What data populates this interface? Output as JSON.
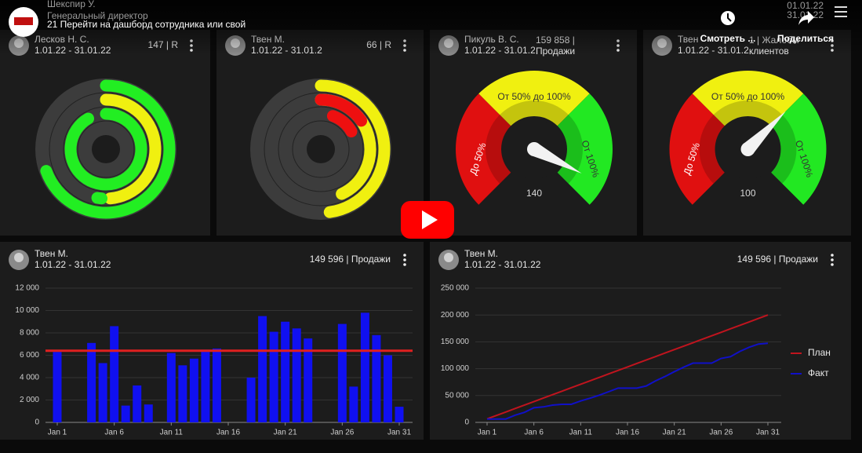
{
  "video": {
    "channel_name": "Шекспир У.",
    "channel_role": "Генеральный директор",
    "title": "21 Перейти на дашборд сотрудника или свой",
    "date_from": "01.01.22",
    "date_to": "31.01.22",
    "watch_later": "Смотреть ...",
    "share": "Поделиться"
  },
  "cards": [
    {
      "name": "Лесков Н. С.",
      "period": "1.01.22 - 31.01.22",
      "metric": "147 | R"
    },
    {
      "name": "Твен М.",
      "period": "1.01.22 - 31.01.2",
      "metric": "66 | R"
    },
    {
      "name": "Пикуль В. С.",
      "period": "1.01.22 - 31.01.2",
      "metric": "159 858 |",
      "metric_unit": "Продажи",
      "gauge": {
        "value": 140,
        "range": [
          0,
          150
        ],
        "low_label": "До 50%",
        "mid_label": "От 50% до 100%",
        "high_label": "От 100%"
      }
    },
    {
      "name": "Твен",
      "period": "1.01.22 - 31.01.2",
      "metric": "1 | Жалобы",
      "metric_unit": "клиентов",
      "gauge": {
        "value": 100,
        "range": [
          0,
          150
        ],
        "low_label": "До 50%",
        "mid_label": "От 50% до 100%",
        "high_label": "От 100%"
      }
    }
  ],
  "panels": [
    {
      "name": "Твен М.",
      "period": "1.01.22 - 31.01.22",
      "metric": "149 596 | Продажи"
    },
    {
      "name": "Твен М.",
      "period": "1.01.22 - 31.01.22",
      "metric": "149 596 | Продажи"
    }
  ],
  "chart_data": [
    {
      "type": "bar",
      "categories": [
        "Jan 1",
        null,
        null,
        null,
        null,
        "Jan 6",
        null,
        null,
        null,
        null,
        "Jan 11",
        null,
        null,
        null,
        null,
        "Jan 16",
        null,
        null,
        null,
        null,
        "Jan 21",
        null,
        null,
        null,
        null,
        "Jan 26",
        null,
        null,
        null,
        null,
        "Jan 31"
      ],
      "values": [
        6300,
        null,
        null,
        7100,
        5300,
        8600,
        1500,
        3300,
        1600,
        null,
        6200,
        5100,
        5700,
        6500,
        6600,
        null,
        null,
        4000,
        9500,
        8100,
        9000,
        8400,
        7500,
        null,
        null,
        8800,
        3200,
        9800,
        7800,
        6000,
        1400
      ],
      "color": "#1010f0",
      "hline": {
        "value": 6400,
        "color": "#e02020"
      },
      "ylim": [
        0,
        12000
      ],
      "yticks": [
        0,
        {
          "value": 2000,
          "label": "2 000"
        },
        {
          "value": 4000,
          "label": "4 000"
        },
        {
          "value": 6000,
          "label": "6 000"
        },
        {
          "value": 8000,
          "label": "8 000"
        },
        {
          "value": 10000,
          "label": "10 000"
        },
        {
          "value": 12000,
          "label": "12 000"
        }
      ],
      "grid": true
    },
    {
      "type": "line",
      "categories": [
        "Jan 1",
        null,
        null,
        null,
        null,
        "Jan 6",
        null,
        null,
        null,
        null,
        "Jan 11",
        null,
        null,
        null,
        null,
        "Jan 16",
        null,
        null,
        null,
        null,
        "Jan 21",
        null,
        null,
        null,
        null,
        "Jan 26",
        null,
        null,
        null,
        null,
        "Jan 31"
      ],
      "series": [
        {
          "name": "План",
          "color": "#c0141e",
          "values": [
            6452,
            12903,
            19355,
            25806,
            32258,
            38710,
            45161,
            51613,
            58065,
            64516,
            70968,
            77419,
            83871,
            90323,
            96774,
            103226,
            109677,
            116129,
            122581,
            129032,
            135484,
            141935,
            148387,
            154839,
            161290,
            167742,
            174194,
            180645,
            187097,
            193548,
            200000
          ]
        },
        {
          "name": "Факт",
          "color": "#1010c8",
          "values": [
            6300,
            6300,
            6300,
            13400,
            18700,
            27300,
            28800,
            32100,
            33700,
            33700,
            39900,
            45000,
            50700,
            57200,
            63800,
            63800,
            63800,
            67800,
            77300,
            85400,
            94400,
            102800,
            110300,
            110300,
            110300,
            119100,
            122300,
            132100,
            139900,
            145900,
            147300
          ]
        }
      ],
      "ylim": [
        0,
        250000
      ],
      "yticks": [
        0,
        {
          "value": 50000,
          "label": "50 000"
        },
        {
          "value": 100000,
          "label": "100 000"
        },
        {
          "value": 150000,
          "label": "150 000"
        },
        {
          "value": 200000,
          "label": "200 000"
        },
        {
          "value": 250000,
          "label": "250 000"
        }
      ],
      "grid": true,
      "legend": "right"
    }
  ]
}
